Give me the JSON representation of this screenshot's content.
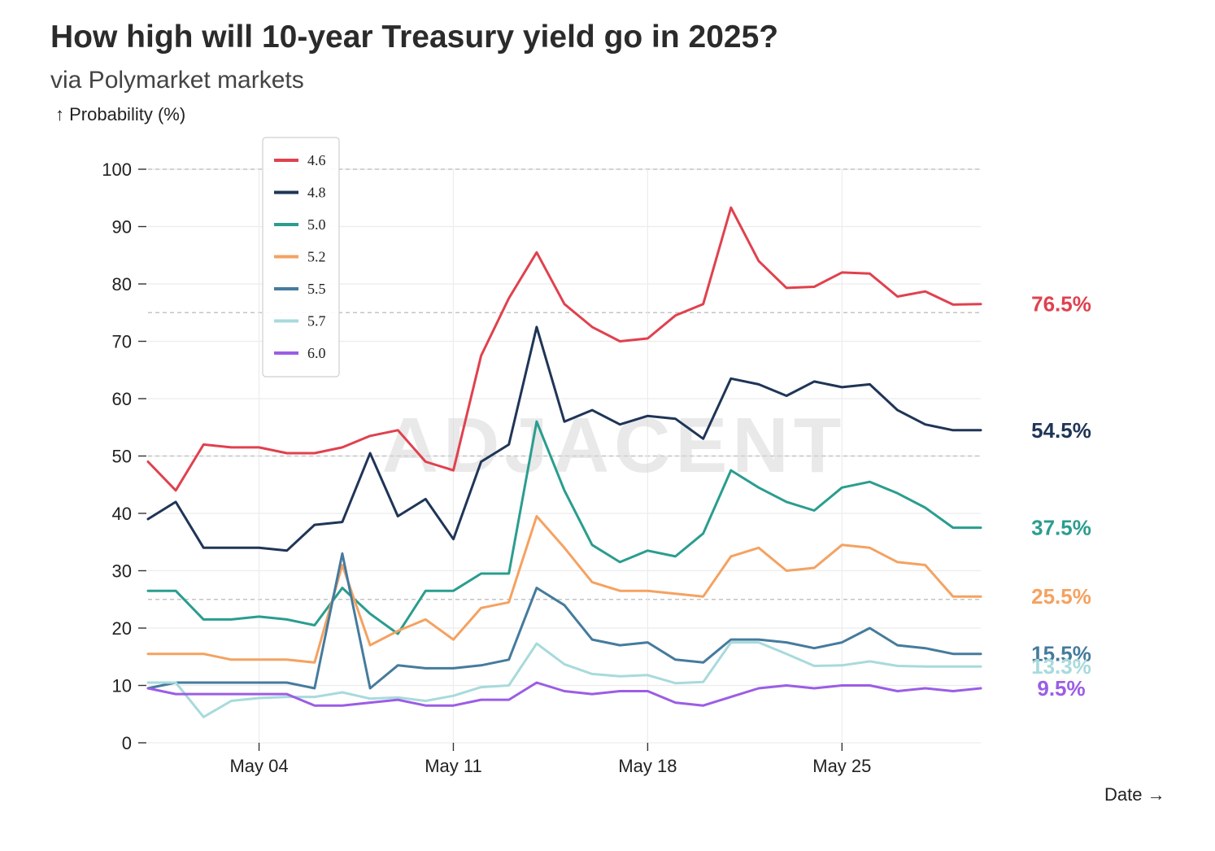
{
  "header": {
    "title": "How high will 10-year Treasury yield go in 2025?",
    "subtitle": "via Polymarket markets",
    "y_axis_label": "↑ Probability (%)",
    "x_axis_label": "Date →",
    "watermark": "ADJACENT"
  },
  "chart_data": {
    "type": "line",
    "title": "How high will 10-year Treasury yield go in 2025?",
    "subtitle": "via Polymarket markets",
    "ylabel": "↑ Probability (%)",
    "xlabel": "Date →",
    "ylim": [
      0,
      100
    ],
    "yticks": [
      0,
      10,
      20,
      30,
      40,
      50,
      60,
      70,
      80,
      90,
      100
    ],
    "x": [
      "2025-04-30",
      "2025-05-01",
      "2025-05-02",
      "2025-05-03",
      "2025-05-04",
      "2025-05-05",
      "2025-05-06",
      "2025-05-07",
      "2025-05-08",
      "2025-05-09",
      "2025-05-10",
      "2025-05-11",
      "2025-05-12",
      "2025-05-13",
      "2025-05-14",
      "2025-05-15",
      "2025-05-16",
      "2025-05-17",
      "2025-05-18",
      "2025-05-19",
      "2025-05-20",
      "2025-05-21",
      "2025-05-22",
      "2025-05-23",
      "2025-05-24",
      "2025-05-25",
      "2025-05-26",
      "2025-05-27",
      "2025-05-28",
      "2025-05-29",
      "2025-05-30"
    ],
    "xticks": [
      {
        "date": "2025-05-04",
        "label": "May 04"
      },
      {
        "date": "2025-05-11",
        "label": "May 11"
      },
      {
        "date": "2025-05-18",
        "label": "May 18"
      },
      {
        "date": "2025-05-25",
        "label": "May 25"
      }
    ],
    "grid": true,
    "dashed_reference_lines": [
      25,
      50,
      75,
      100
    ],
    "legend_position": "top-left",
    "series": [
      {
        "name": "4.6",
        "color": "#e0414e",
        "end_label": "76.5%",
        "values": [
          49,
          44,
          52,
          51.5,
          51.5,
          50.5,
          50.5,
          51.5,
          53.5,
          54.5,
          49,
          47.5,
          67.5,
          77.5,
          85.5,
          76.5,
          72.5,
          70,
          70.5,
          74.5,
          76.5,
          93.3,
          84,
          79.3,
          79.5,
          82,
          81.8,
          77.8,
          78.7,
          76.4,
          76.5
        ]
      },
      {
        "name": "4.8",
        "color": "#1f3557",
        "end_label": "54.5%",
        "values": [
          39,
          42,
          34,
          34,
          34,
          33.5,
          38,
          38.5,
          50.5,
          39.5,
          42.5,
          35.5,
          49,
          52,
          72.5,
          56,
          58,
          55.5,
          57,
          56.5,
          53,
          63.5,
          62.5,
          60.5,
          63,
          62,
          62.5,
          58,
          55.5,
          54.5,
          54.5
        ]
      },
      {
        "name": "5.0",
        "color": "#2a9d8f",
        "end_label": "37.5%",
        "values": [
          26.5,
          26.5,
          21.5,
          21.5,
          22,
          21.5,
          20.5,
          27,
          22.5,
          19,
          26.5,
          26.5,
          29.5,
          29.5,
          56,
          44,
          34.5,
          31.5,
          33.5,
          32.5,
          36.5,
          47.5,
          44.5,
          42,
          40.5,
          44.5,
          45.5,
          43.5,
          41,
          37.5,
          37.5
        ]
      },
      {
        "name": "5.2",
        "color": "#f4a261",
        "end_label": "25.5%",
        "values": [
          15.5,
          15.5,
          15.5,
          14.5,
          14.5,
          14.5,
          14,
          31,
          17,
          19.5,
          21.5,
          18,
          23.5,
          24.5,
          39.5,
          34,
          28,
          26.5,
          26.5,
          26,
          25.5,
          32.5,
          34,
          30,
          30.5,
          34.5,
          34,
          31.5,
          31,
          25.5,
          25.5
        ]
      },
      {
        "name": "5.5",
        "color": "#457b9d",
        "end_label": "15.5%",
        "values": [
          9.5,
          10.5,
          10.5,
          10.5,
          10.5,
          10.5,
          9.5,
          33,
          9.5,
          13.5,
          13,
          13,
          13.5,
          14.5,
          27,
          24,
          18,
          17,
          17.5,
          14.5,
          14,
          18,
          18,
          17.5,
          16.5,
          17.5,
          20,
          17,
          16.5,
          15.5,
          15.5
        ]
      },
      {
        "name": "5.7",
        "color": "#a8dadc",
        "end_label": "13.3%",
        "values": [
          10.5,
          10.5,
          4.5,
          7.3,
          7.8,
          8,
          8,
          8.8,
          7.7,
          7.9,
          7.3,
          8.2,
          9.7,
          10,
          17.3,
          13.7,
          12,
          11.6,
          11.8,
          10.4,
          10.6,
          17.5,
          17.5,
          15.5,
          13.4,
          13.5,
          14.2,
          13.4,
          13.3,
          13.3,
          13.3
        ]
      },
      {
        "name": "6.0",
        "color": "#9b5de5",
        "end_label": "9.5%",
        "values": [
          9.5,
          8.5,
          8.5,
          8.5,
          8.5,
          8.5,
          6.5,
          6.5,
          7,
          7.5,
          6.5,
          6.5,
          7.5,
          7.5,
          10.5,
          9,
          8.5,
          9,
          9,
          7,
          6.5,
          8,
          9.5,
          10,
          9.5,
          10,
          10,
          9,
          9.5,
          9,
          9.5
        ]
      }
    ]
  }
}
